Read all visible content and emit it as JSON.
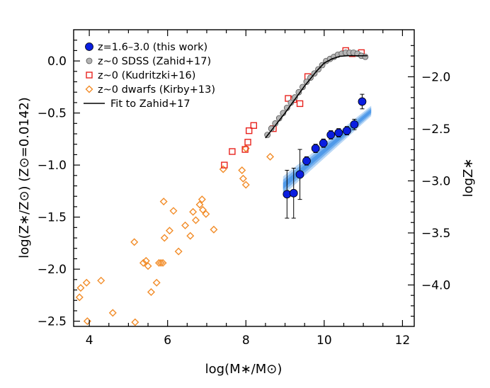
{
  "chart_data": {
    "type": "scatter",
    "xlabel": "log(M∗/M⊙)",
    "ylabel": "log(Z∗/Z⊙)   (Z⊙=0.0142)",
    "ylabel_right": "logZ∗",
    "xlim": [
      3.6,
      12.3
    ],
    "ylim": [
      -2.55,
      0.3
    ],
    "x_ticks": [
      4,
      6,
      8,
      10,
      12
    ],
    "x_tick_labels": [
      "4",
      "6",
      "8",
      "10",
      "12"
    ],
    "y_ticks": [
      0.0,
      -0.5,
      -1.0,
      -1.5,
      -2.0,
      -2.5
    ],
    "y_tick_labels": [
      "0.0",
      "−0.5",
      "−1.0",
      "−1.5",
      "−2.0",
      "−2.5"
    ],
    "y2_ticks": [
      -2.0,
      -2.5,
      -3.0,
      -3.5,
      -4.0
    ],
    "y2_tick_labels": [
      "−2.0",
      "−2.5",
      "−3.0",
      "−3.5",
      "−4.0"
    ],
    "y2_offset": -1.848,
    "legend_position": "top-left",
    "grid": false,
    "series": [
      {
        "name": "z=1.6–3.0 (this work)",
        "marker": "filled-circle",
        "color": "#0a1ee0",
        "points": [
          {
            "x": 9.05,
            "y": -1.28,
            "err": 0.23
          },
          {
            "x": 9.22,
            "y": -1.27,
            "err": 0.24
          },
          {
            "x": 9.38,
            "y": -1.09,
            "err": 0.24
          },
          {
            "x": 9.55,
            "y": -0.96,
            "err": 0.04
          },
          {
            "x": 9.78,
            "y": -0.84,
            "err": 0.04
          },
          {
            "x": 9.98,
            "y": -0.79,
            "err": 0.04
          },
          {
            "x": 10.17,
            "y": -0.71,
            "err": 0.04
          },
          {
            "x": 10.37,
            "y": -0.69,
            "err": 0.04
          },
          {
            "x": 10.58,
            "y": -0.67,
            "err": 0.04
          },
          {
            "x": 10.77,
            "y": -0.61,
            "err": 0.05
          },
          {
            "x": 10.97,
            "y": -0.39,
            "err": 0.07
          }
        ]
      },
      {
        "name": "z~0 SDSS (Zahid+17)",
        "marker": "gray-circle",
        "color": "#b4b4b4",
        "points": [
          {
            "x": 8.55,
            "y": -0.71
          },
          {
            "x": 8.65,
            "y": -0.65
          },
          {
            "x": 8.75,
            "y": -0.6
          },
          {
            "x": 8.85,
            "y": -0.55
          },
          {
            "x": 8.95,
            "y": -0.5
          },
          {
            "x": 9.05,
            "y": -0.45
          },
          {
            "x": 9.15,
            "y": -0.4
          },
          {
            "x": 9.25,
            "y": -0.35
          },
          {
            "x": 9.35,
            "y": -0.3
          },
          {
            "x": 9.45,
            "y": -0.25
          },
          {
            "x": 9.55,
            "y": -0.2
          },
          {
            "x": 9.65,
            "y": -0.16
          },
          {
            "x": 9.75,
            "y": -0.12
          },
          {
            "x": 9.85,
            "y": -0.08
          },
          {
            "x": 9.95,
            "y": -0.04
          },
          {
            "x": 10.05,
            "y": 0.0
          },
          {
            "x": 10.15,
            "y": 0.02
          },
          {
            "x": 10.25,
            "y": 0.04
          },
          {
            "x": 10.35,
            "y": 0.06
          },
          {
            "x": 10.45,
            "y": 0.07
          },
          {
            "x": 10.55,
            "y": 0.08
          },
          {
            "x": 10.65,
            "y": 0.08
          },
          {
            "x": 10.75,
            "y": 0.08
          },
          {
            "x": 10.85,
            "y": 0.07
          },
          {
            "x": 10.95,
            "y": 0.05
          },
          {
            "x": 11.05,
            "y": 0.04
          }
        ]
      },
      {
        "name": "z~0 (Kudritzki+16)",
        "marker": "open-square",
        "color": "#e8231e",
        "points": [
          {
            "x": 7.45,
            "y": -1.0
          },
          {
            "x": 7.65,
            "y": -0.87
          },
          {
            "x": 7.98,
            "y": -0.85
          },
          {
            "x": 8.05,
            "y": -0.78
          },
          {
            "x": 8.08,
            "y": -0.67
          },
          {
            "x": 8.2,
            "y": -0.62
          },
          {
            "x": 8.7,
            "y": -0.65
          },
          {
            "x": 9.08,
            "y": -0.36
          },
          {
            "x": 9.22,
            "y": -0.37
          },
          {
            "x": 9.38,
            "y": -0.41
          },
          {
            "x": 9.58,
            "y": -0.15
          },
          {
            "x": 10.55,
            "y": 0.1
          },
          {
            "x": 10.72,
            "y": 0.07
          },
          {
            "x": 10.95,
            "y": 0.08
          }
        ]
      },
      {
        "name": "z~0 dwarfs (Kirby+13)",
        "marker": "open-diamond",
        "color": "#f28c28",
        "points": [
          {
            "x": 3.75,
            "y": -2.27
          },
          {
            "x": 3.78,
            "y": -2.18
          },
          {
            "x": 3.93,
            "y": -2.13
          },
          {
            "x": 3.95,
            "y": -2.5
          },
          {
            "x": 4.3,
            "y": -2.11
          },
          {
            "x": 4.6,
            "y": -2.42
          },
          {
            "x": 5.15,
            "y": -1.74
          },
          {
            "x": 5.17,
            "y": -2.51
          },
          {
            "x": 5.38,
            "y": -1.94
          },
          {
            "x": 5.45,
            "y": -1.92
          },
          {
            "x": 5.5,
            "y": -1.97
          },
          {
            "x": 5.58,
            "y": -2.22
          },
          {
            "x": 5.72,
            "y": -2.13
          },
          {
            "x": 5.78,
            "y": -1.94
          },
          {
            "x": 5.83,
            "y": -1.94
          },
          {
            "x": 5.88,
            "y": -1.94
          },
          {
            "x": 5.92,
            "y": -1.7
          },
          {
            "x": 5.9,
            "y": -1.35
          },
          {
            "x": 6.05,
            "y": -1.63
          },
          {
            "x": 6.15,
            "y": -1.44
          },
          {
            "x": 6.28,
            "y": -1.83
          },
          {
            "x": 6.45,
            "y": -1.58
          },
          {
            "x": 6.58,
            "y": -1.68
          },
          {
            "x": 6.65,
            "y": -1.45
          },
          {
            "x": 6.72,
            "y": -1.53
          },
          {
            "x": 6.82,
            "y": -1.38
          },
          {
            "x": 6.88,
            "y": -1.33
          },
          {
            "x": 6.9,
            "y": -1.43
          },
          {
            "x": 6.98,
            "y": -1.47
          },
          {
            "x": 7.18,
            "y": -1.62
          },
          {
            "x": 7.42,
            "y": -1.04
          },
          {
            "x": 7.9,
            "y": -1.05
          },
          {
            "x": 7.93,
            "y": -1.13
          },
          {
            "x": 8.0,
            "y": -1.19
          },
          {
            "x": 8.0,
            "y": -0.84
          },
          {
            "x": 8.62,
            "y": -0.92
          }
        ]
      },
      {
        "name": "Fit to Zahid+17",
        "marker": "line",
        "color": "#000000",
        "points": [
          {
            "x": 8.5,
            "y": -0.74
          },
          {
            "x": 9.0,
            "y": -0.5
          },
          {
            "x": 9.5,
            "y": -0.24
          },
          {
            "x": 9.8,
            "y": -0.1
          },
          {
            "x": 10.0,
            "y": -0.02
          },
          {
            "x": 10.2,
            "y": 0.02
          },
          {
            "x": 10.4,
            "y": 0.045
          },
          {
            "x": 10.6,
            "y": 0.05
          },
          {
            "x": 11.1,
            "y": 0.05
          }
        ]
      }
    ],
    "fit_band": {
      "color": "#3a8ee6",
      "x": [
        8.95,
        11.2
      ],
      "y_center": [
        -1.2,
        -0.48
      ],
      "y_halfwidth": [
        0.09,
        0.05
      ]
    }
  }
}
